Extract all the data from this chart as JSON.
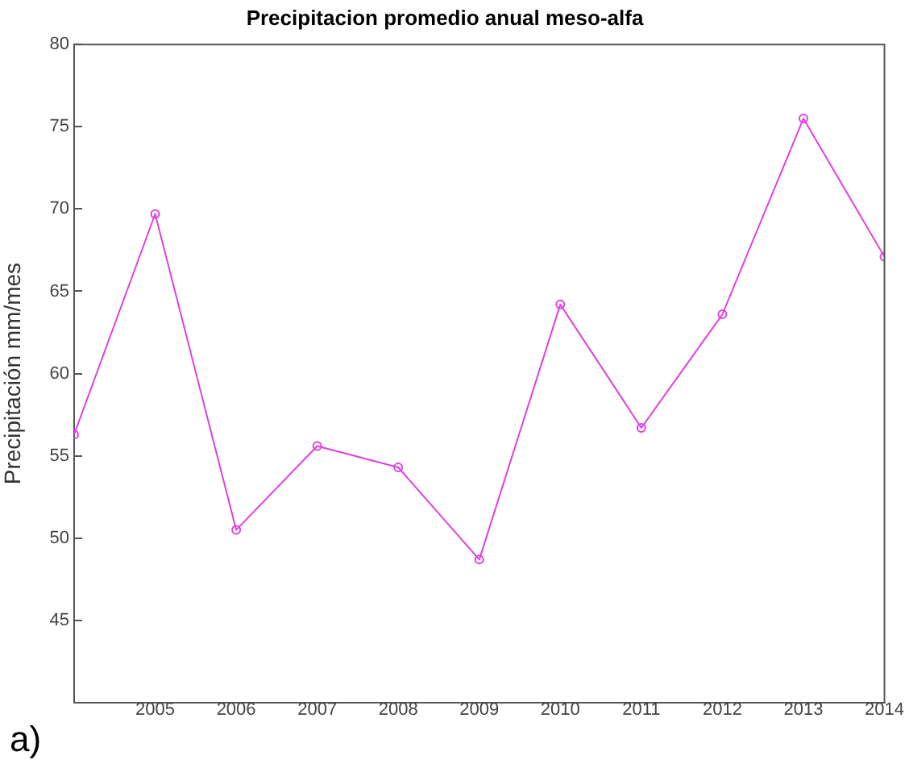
{
  "chart_data": {
    "type": "line",
    "title": "Precipitacion promedio anual meso-alfa",
    "ylabel": "Precipitación mm/mes",
    "annotations": [
      "a)"
    ],
    "x": [
      2004,
      2005,
      2006,
      2007,
      2008,
      2009,
      2010,
      2011,
      2012,
      2013,
      2014
    ],
    "series": [
      {
        "color": "#e040e0",
        "values": [
          56.3,
          69.7,
          50.5,
          55.6,
          54.3,
          48.7,
          64.2,
          56.7,
          63.6,
          75.5,
          67.1
        ]
      }
    ],
    "xlim": [
      2004,
      2014
    ],
    "xticks": [
      2005,
      2006,
      2007,
      2008,
      2009,
      2010,
      2011,
      2012,
      2013,
      2014
    ],
    "ylim": [
      40,
      80
    ],
    "yticks": [
      45,
      50,
      55,
      60,
      65,
      70,
      75,
      80
    ],
    "grid": false,
    "legend": false,
    "marker": "circle",
    "line_style": "solid"
  }
}
